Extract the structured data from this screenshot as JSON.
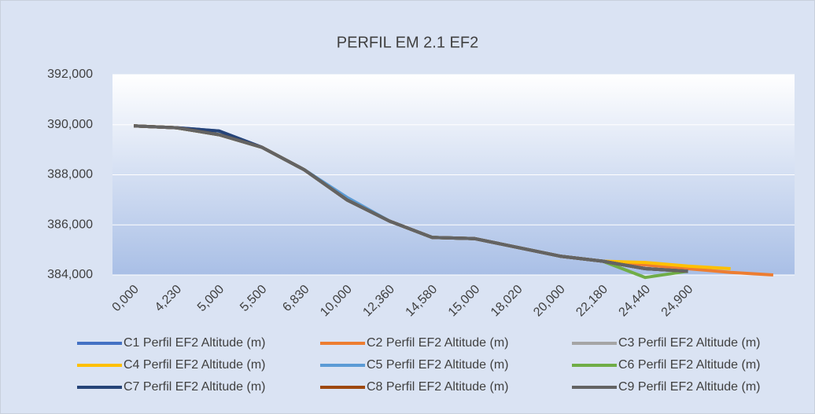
{
  "chart_data": {
    "type": "line",
    "title": "PERFIL EM 2.1 EF2",
    "categories": [
      "0,000",
      "4,230",
      "5,000",
      "5,500",
      "6,830",
      "10,000",
      "12,360",
      "14,580",
      "15,000",
      "18,020",
      "20,000",
      "22,180",
      "24,440",
      "24,900",
      null,
      null
    ],
    "ylim": [
      384000,
      392000
    ],
    "yticks": [
      {
        "value": 384000,
        "label": "384,000"
      },
      {
        "value": 386000,
        "label": "386,000"
      },
      {
        "value": 388000,
        "label": "388,000"
      },
      {
        "value": 390000,
        "label": "390,000"
      },
      {
        "value": 392000,
        "label": "392,000"
      }
    ],
    "grid": true,
    "legend": "bottom",
    "series": [
      {
        "name": "C1 Perfil EF2 Altitude (m)",
        "color": "#4472c4",
        "values": [
          389950,
          389880,
          389750,
          389100,
          388200,
          387000,
          386150,
          385500,
          385450,
          385100,
          384750,
          384550,
          384250,
          384150,
          null,
          null
        ]
      },
      {
        "name": "C2 Perfil EF2 Altitude (m)",
        "color": "#ed7d31",
        "values": [
          389950,
          389880,
          389600,
          389100,
          388200,
          387000,
          386150,
          385500,
          385450,
          385100,
          384750,
          384550,
          384400,
          384250,
          384100,
          384000
        ]
      },
      {
        "name": "C3 Perfil EF2 Altitude (m)",
        "color": "#a5a5a5",
        "values": [
          389950,
          389880,
          389600,
          389100,
          388200,
          387000,
          386150,
          385500,
          385450,
          385100,
          384750,
          384550,
          384250,
          384150,
          null,
          null
        ]
      },
      {
        "name": "C4 Perfil EF2 Altitude (m)",
        "color": "#ffc000",
        "values": [
          389950,
          389880,
          389600,
          389100,
          388200,
          387000,
          386150,
          385500,
          385450,
          385100,
          384750,
          384550,
          384500,
          384350,
          384250,
          null
        ]
      },
      {
        "name": "C5 Perfil EF2 Altitude (m)",
        "color": "#5b9bd5",
        "values": [
          389950,
          389880,
          389600,
          389100,
          388200,
          387100,
          386150,
          385500,
          385450,
          385100,
          384750,
          384550,
          384250,
          384150,
          null,
          null
        ]
      },
      {
        "name": "C6 Perfil EF2 Altitude (m)",
        "color": "#70ad47",
        "values": [
          389950,
          389880,
          389600,
          389100,
          388200,
          387000,
          386150,
          385500,
          385450,
          385100,
          384750,
          384550,
          383900,
          384150,
          null,
          null
        ]
      },
      {
        "name": "C7 Perfil EF2 Altitude (m)",
        "color": "#264478",
        "values": [
          389950,
          389880,
          389750,
          389100,
          388200,
          387000,
          386150,
          385500,
          385450,
          385100,
          384750,
          384550,
          384250,
          384150,
          null,
          null
        ]
      },
      {
        "name": "C8 Perfil EF2 Altitude (m)",
        "color": "#9e480e",
        "values": [
          389950,
          389880,
          389600,
          389100,
          388200,
          387000,
          386150,
          385500,
          385450,
          385100,
          384750,
          384550,
          384250,
          384150,
          null,
          null
        ]
      },
      {
        "name": "C9 Perfil EF2 Altitude (m)",
        "color": "#636363",
        "values": [
          389950,
          389880,
          389600,
          389100,
          388200,
          387000,
          386150,
          385500,
          385450,
          385100,
          384750,
          384550,
          384250,
          384150,
          null,
          null
        ]
      }
    ]
  }
}
